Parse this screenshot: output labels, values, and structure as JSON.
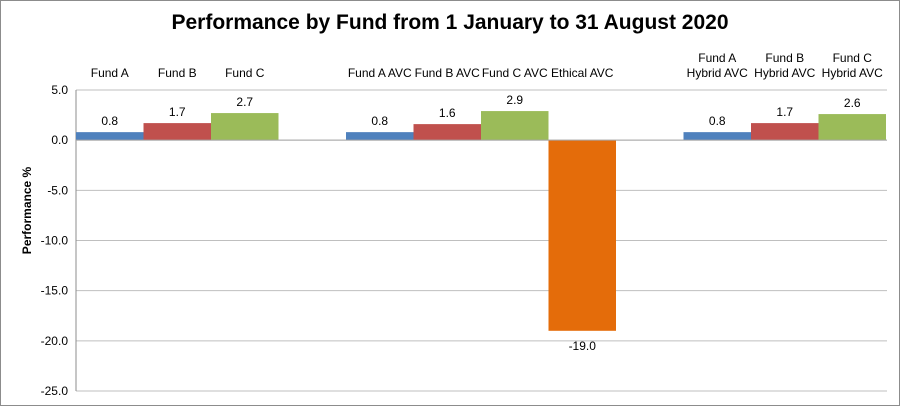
{
  "chart_data": {
    "type": "bar",
    "title": "Performance by Fund from 1 January to 31 August 2020",
    "xlabel": "",
    "ylabel": "Performance %",
    "ylim": [
      -25,
      5
    ],
    "yticks": [
      "5.0",
      "0.0",
      "-5.0",
      "-10.0",
      "-15.0",
      "-20.0",
      "-25.0"
    ],
    "grid": true,
    "legend": "none",
    "groups": [
      {
        "bars": [
          {
            "label": [
              "Fund A"
            ],
            "value": 0.8,
            "value_label": "0.8",
            "color": "#4f81bd"
          },
          {
            "label": [
              "Fund B"
            ],
            "value": 1.7,
            "value_label": "1.7",
            "color": "#c0504d"
          },
          {
            "label": [
              "Fund C"
            ],
            "value": 2.7,
            "value_label": "2.7",
            "color": "#9bbb59"
          }
        ]
      },
      {
        "bars": [
          {
            "label": [
              "Fund A AVC"
            ],
            "value": 0.8,
            "value_label": "0.8",
            "color": "#4f81bd"
          },
          {
            "label": [
              "Fund B AVC"
            ],
            "value": 1.6,
            "value_label": "1.6",
            "color": "#c0504d"
          },
          {
            "label": [
              "Fund C AVC"
            ],
            "value": 2.9,
            "value_label": "2.9",
            "color": "#9bbb59"
          },
          {
            "label": [
              "Ethical AVC"
            ],
            "value": -19.0,
            "value_label": "-19.0",
            "color": "#e46c0a"
          }
        ]
      },
      {
        "bars": [
          {
            "label": [
              "Fund A",
              "Hybrid AVC"
            ],
            "value": 0.8,
            "value_label": "0.8",
            "color": "#4f81bd"
          },
          {
            "label": [
              "Fund B",
              "Hybrid AVC"
            ],
            "value": 1.7,
            "value_label": "1.7",
            "color": "#c0504d"
          },
          {
            "label": [
              "Fund C",
              "Hybrid AVC"
            ],
            "value": 2.6,
            "value_label": "2.6",
            "color": "#9bbb59"
          }
        ]
      }
    ]
  }
}
